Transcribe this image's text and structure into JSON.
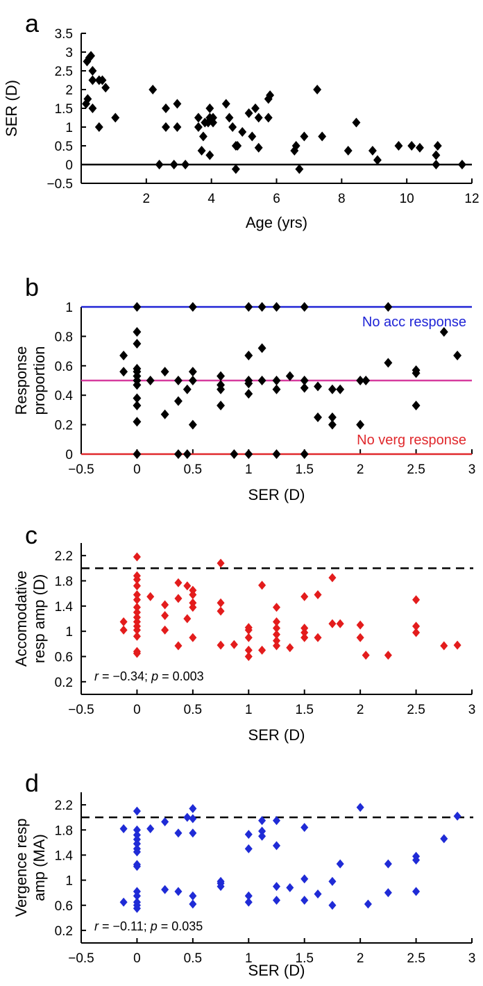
{
  "chart_data": [
    {
      "panel": "a",
      "type": "scatter",
      "xlabel": "Age (yrs)",
      "ylabel": "SER (D)",
      "xlim": [
        0,
        12
      ],
      "ylim": [
        -0.5,
        3.5
      ],
      "xticks": [
        2,
        4,
        6,
        8,
        10,
        12
      ],
      "yticks": [
        -0.5,
        0,
        0.5,
        1,
        1.5,
        2,
        2.5,
        3,
        3.5
      ],
      "ytick_labels": [
        "−0.5",
        "0",
        "0.5",
        "1",
        "1.5",
        "2",
        "2.5",
        "3",
        "3.5"
      ],
      "reference_lines": [
        {
          "y": 0,
          "color": "#000000",
          "style": "solid"
        }
      ],
      "marker_color": "#000000",
      "points": [
        [
          0.15,
          1.62
        ],
        [
          0.2,
          1.75
        ],
        [
          0.18,
          2.75
        ],
        [
          0.25,
          2.85
        ],
        [
          0.3,
          2.9
        ],
        [
          0.35,
          2.5
        ],
        [
          0.35,
          2.25
        ],
        [
          0.35,
          1.5
        ],
        [
          0.55,
          2.25
        ],
        [
          0.55,
          1.0
        ],
        [
          0.65,
          2.25
        ],
        [
          0.75,
          2.05
        ],
        [
          1.05,
          1.25
        ],
        [
          2.2,
          2.0
        ],
        [
          2.4,
          0.0
        ],
        [
          2.6,
          1.5
        ],
        [
          2.6,
          1.0
        ],
        [
          2.85,
          0.0
        ],
        [
          2.95,
          1.62
        ],
        [
          2.95,
          1.0
        ],
        [
          3.2,
          0.0
        ],
        [
          3.6,
          1.25
        ],
        [
          3.6,
          1.0
        ],
        [
          3.7,
          0.37
        ],
        [
          3.75,
          0.75
        ],
        [
          3.8,
          1.12
        ],
        [
          3.9,
          1.12
        ],
        [
          3.95,
          1.5
        ],
        [
          3.95,
          1.25
        ],
        [
          3.95,
          0.25
        ],
        [
          4.05,
          1.25
        ],
        [
          4.05,
          1.12
        ],
        [
          4.45,
          1.62
        ],
        [
          4.55,
          1.25
        ],
        [
          4.65,
          1.0
        ],
        [
          4.75,
          0.5
        ],
        [
          4.8,
          0.5
        ],
        [
          4.75,
          -0.12
        ],
        [
          4.95,
          0.87
        ],
        [
          5.15,
          1.37
        ],
        [
          5.25,
          0.75
        ],
        [
          5.35,
          1.5
        ],
        [
          5.45,
          1.25
        ],
        [
          5.45,
          0.45
        ],
        [
          5.75,
          1.75
        ],
        [
          5.75,
          1.25
        ],
        [
          5.8,
          1.85
        ],
        [
          6.55,
          0.37
        ],
        [
          6.6,
          0.5
        ],
        [
          6.7,
          -0.12
        ],
        [
          6.85,
          0.75
        ],
        [
          7.25,
          2.0
        ],
        [
          7.4,
          0.75
        ],
        [
          8.2,
          0.37
        ],
        [
          8.45,
          1.12
        ],
        [
          8.95,
          0.37
        ],
        [
          9.1,
          0.12
        ],
        [
          9.75,
          0.5
        ],
        [
          10.15,
          0.5
        ],
        [
          10.4,
          0.45
        ],
        [
          10.95,
          0.5
        ],
        [
          10.9,
          0.25
        ],
        [
          10.9,
          0.0
        ],
        [
          11.7,
          0.0
        ]
      ]
    },
    {
      "panel": "b",
      "type": "scatter",
      "xlabel": "SER (D)",
      "ylabel": [
        "Response",
        "proportion"
      ],
      "xlim": [
        -0.5,
        3
      ],
      "ylim": [
        0,
        1
      ],
      "xticks": [
        -0.5,
        0,
        0.5,
        1,
        1.5,
        2,
        2.5,
        3
      ],
      "xtick_labels": [
        "−0.5",
        "0",
        "0.5",
        "1",
        "1.5",
        "2",
        "2.5",
        "3"
      ],
      "yticks": [
        0,
        0.2,
        0.4,
        0.6,
        0.8,
        1
      ],
      "reference_lines": [
        {
          "y": 1,
          "color": "#1f24d6",
          "style": "solid",
          "label": "No acc response"
        },
        {
          "y": 0.5,
          "color": "#d63c9e",
          "style": "solid"
        },
        {
          "y": 0,
          "color": "#e0282c",
          "style": "solid",
          "label": "No verg response"
        }
      ],
      "marker_color": "#000000",
      "points": [
        [
          0,
          1
        ],
        [
          0.5,
          1
        ],
        [
          1,
          1
        ],
        [
          1.12,
          1
        ],
        [
          1.25,
          1
        ],
        [
          1.5,
          1
        ],
        [
          2.25,
          1
        ],
        [
          -0.12,
          0.67
        ],
        [
          -0.12,
          0.56
        ],
        [
          0,
          0.83
        ],
        [
          0,
          0.75
        ],
        [
          0,
          0.58
        ],
        [
          0,
          0.56
        ],
        [
          0,
          0.53
        ],
        [
          0,
          0.5
        ],
        [
          0,
          0.47
        ],
        [
          0,
          0.38
        ],
        [
          0,
          0.33
        ],
        [
          0,
          0.22
        ],
        [
          0,
          0
        ],
        [
          0.12,
          0.5
        ],
        [
          0.25,
          0.56
        ],
        [
          0.25,
          0.27
        ],
        [
          0.37,
          0.5
        ],
        [
          0.37,
          0.36
        ],
        [
          0.37,
          0
        ],
        [
          0.45,
          0.44
        ],
        [
          0.45,
          0
        ],
        [
          0.5,
          0.56
        ],
        [
          0.5,
          0.5
        ],
        [
          0.5,
          0.2
        ],
        [
          0.75,
          0.53
        ],
        [
          0.75,
          0.47
        ],
        [
          0.75,
          0.44
        ],
        [
          0.75,
          0.33
        ],
        [
          0.87,
          0
        ],
        [
          1,
          0.67
        ],
        [
          1,
          0.5
        ],
        [
          1,
          0.48
        ],
        [
          1,
          0.41
        ],
        [
          1,
          0
        ],
        [
          1.12,
          0.72
        ],
        [
          1.12,
          0.5
        ],
        [
          1.25,
          0.5
        ],
        [
          1.25,
          0.44
        ],
        [
          1.25,
          0
        ],
        [
          1.37,
          0.53
        ],
        [
          1.5,
          0.5
        ],
        [
          1.5,
          0.45
        ],
        [
          1.5,
          0
        ],
        [
          1.62,
          0.46
        ],
        [
          1.62,
          0.25
        ],
        [
          1.75,
          0.44
        ],
        [
          1.75,
          0.25
        ],
        [
          1.75,
          0.2
        ],
        [
          1.82,
          0.44
        ],
        [
          2,
          0.5
        ],
        [
          2.05,
          0.5
        ],
        [
          2,
          0.2
        ],
        [
          2.25,
          0.62
        ],
        [
          2.5,
          0.57
        ],
        [
          2.5,
          0.55
        ],
        [
          2.5,
          0.33
        ],
        [
          2.75,
          0.83
        ],
        [
          2.87,
          0.67
        ]
      ]
    },
    {
      "panel": "c",
      "type": "scatter",
      "xlabel": "SER (D)",
      "ylabel": [
        "Accomodative",
        "resp amp (D)"
      ],
      "xlim": [
        -0.5,
        3
      ],
      "ylim": [
        0,
        2.4
      ],
      "xticks": [
        -0.5,
        0,
        0.5,
        1,
        1.5,
        2,
        2.5,
        3
      ],
      "xtick_labels": [
        "−0.5",
        "0",
        "0.5",
        "1",
        "1.5",
        "2",
        "2.5",
        "3"
      ],
      "yticks": [
        0.2,
        0.6,
        1,
        1.4,
        1.8,
        2.2
      ],
      "reference_lines": [
        {
          "y": 2.0,
          "color": "#000000",
          "style": "dashed"
        }
      ],
      "marker_color": "#e31c1c",
      "stat_text": {
        "r": "−0.34",
        "p": "0.003"
      },
      "points": [
        [
          -0.12,
          1.15
        ],
        [
          -0.12,
          1.02
        ],
        [
          0,
          2.18
        ],
        [
          0,
          1.88
        ],
        [
          0,
          1.82
        ],
        [
          0,
          1.72
        ],
        [
          0,
          1.58
        ],
        [
          0,
          1.5
        ],
        [
          0,
          1.38
        ],
        [
          0,
          1.3
        ],
        [
          0,
          1.22
        ],
        [
          0,
          1.15
        ],
        [
          0,
          1.08
        ],
        [
          0,
          1.02
        ],
        [
          0,
          0.92
        ],
        [
          0,
          0.68
        ],
        [
          0,
          0.65
        ],
        [
          0.12,
          1.55
        ],
        [
          0.25,
          1.42
        ],
        [
          0.25,
          1.25
        ],
        [
          0.25,
          1.02
        ],
        [
          0.37,
          1.77
        ],
        [
          0.37,
          1.52
        ],
        [
          0.37,
          0.77
        ],
        [
          0.45,
          1.72
        ],
        [
          0.45,
          1.2
        ],
        [
          0.5,
          1.65
        ],
        [
          0.5,
          1.58
        ],
        [
          0.5,
          1.45
        ],
        [
          0.5,
          1.38
        ],
        [
          0.5,
          0.9
        ],
        [
          0.75,
          2.08
        ],
        [
          0.75,
          1.45
        ],
        [
          0.75,
          1.32
        ],
        [
          0.75,
          0.78
        ],
        [
          0.87,
          0.79
        ],
        [
          1,
          1.06
        ],
        [
          1,
          1.02
        ],
        [
          1,
          0.9
        ],
        [
          1,
          0.7
        ],
        [
          1,
          0.6
        ],
        [
          1.12,
          1.73
        ],
        [
          1.12,
          0.7
        ],
        [
          1.25,
          1.38
        ],
        [
          1.25,
          1.15
        ],
        [
          1.25,
          1.05
        ],
        [
          1.25,
          0.95
        ],
        [
          1.25,
          0.85
        ],
        [
          1.25,
          0.77
        ],
        [
          1.37,
          0.74
        ],
        [
          1.5,
          1.55
        ],
        [
          1.5,
          1.05
        ],
        [
          1.5,
          0.98
        ],
        [
          1.5,
          0.9
        ],
        [
          1.62,
          1.58
        ],
        [
          1.62,
          0.9
        ],
        [
          1.75,
          1.85
        ],
        [
          1.75,
          1.12
        ],
        [
          1.82,
          1.12
        ],
        [
          2,
          1.1
        ],
        [
          2,
          0.9
        ],
        [
          2.05,
          0.62
        ],
        [
          2.25,
          0.62
        ],
        [
          2.5,
          1.5
        ],
        [
          2.5,
          1.08
        ],
        [
          2.5,
          0.98
        ],
        [
          2.75,
          0.77
        ],
        [
          2.87,
          0.78
        ]
      ]
    },
    {
      "panel": "d",
      "type": "scatter",
      "xlabel": "SER (D)",
      "ylabel": [
        "Vergence resp",
        "amp (MA)"
      ],
      "xlim": [
        -0.5,
        3
      ],
      "ylim": [
        0,
        2.4
      ],
      "xticks": [
        -0.5,
        0,
        0.5,
        1,
        1.5,
        2,
        2.5,
        3
      ],
      "xtick_labels": [
        "−0.5",
        "0",
        "0.5",
        "1",
        "1.5",
        "2",
        "2.5",
        "3"
      ],
      "yticks": [
        0.2,
        0.6,
        1,
        1.4,
        1.8,
        2.2
      ],
      "reference_lines": [
        {
          "y": 2.0,
          "color": "#000000",
          "style": "dashed"
        }
      ],
      "marker_color": "#1f2bd6",
      "stat_text": {
        "r": "−0.11",
        "p": "0.035"
      },
      "points": [
        [
          -0.12,
          1.82
        ],
        [
          -0.12,
          0.65
        ],
        [
          0,
          2.1
        ],
        [
          0,
          1.8
        ],
        [
          0,
          1.72
        ],
        [
          0,
          1.65
        ],
        [
          0,
          1.58
        ],
        [
          0,
          1.5
        ],
        [
          0,
          1.45
        ],
        [
          0,
          1.25
        ],
        [
          0,
          1.22
        ],
        [
          0,
          0.82
        ],
        [
          0,
          0.75
        ],
        [
          0,
          0.65
        ],
        [
          0,
          0.6
        ],
        [
          0,
          0.55
        ],
        [
          0.12,
          1.82
        ],
        [
          0.25,
          1.93
        ],
        [
          0.25,
          0.85
        ],
        [
          0.37,
          1.75
        ],
        [
          0.37,
          0.82
        ],
        [
          0.45,
          2.0
        ],
        [
          0.5,
          2.14
        ],
        [
          0.5,
          1.98
        ],
        [
          0.5,
          1.75
        ],
        [
          0.5,
          0.75
        ],
        [
          0.5,
          0.62
        ],
        [
          0.75,
          0.98
        ],
        [
          0.75,
          0.95
        ],
        [
          0.75,
          0.9
        ],
        [
          1,
          1.73
        ],
        [
          1,
          1.5
        ],
        [
          1,
          0.75
        ],
        [
          1,
          0.65
        ],
        [
          1.12,
          1.95
        ],
        [
          1.12,
          1.78
        ],
        [
          1.12,
          1.7
        ],
        [
          1.25,
          1.95
        ],
        [
          1.25,
          1.55
        ],
        [
          1.25,
          0.9
        ],
        [
          1.25,
          0.68
        ],
        [
          1.37,
          0.88
        ],
        [
          1.5,
          1.84
        ],
        [
          1.5,
          1.02
        ],
        [
          1.5,
          0.68
        ],
        [
          1.62,
          0.78
        ],
        [
          1.75,
          0.98
        ],
        [
          1.75,
          0.6
        ],
        [
          1.82,
          1.26
        ],
        [
          2,
          2.16
        ],
        [
          2.07,
          0.62
        ],
        [
          2.25,
          1.26
        ],
        [
          2.25,
          0.8
        ],
        [
          2.5,
          1.38
        ],
        [
          2.5,
          1.32
        ],
        [
          2.5,
          0.82
        ],
        [
          2.75,
          1.66
        ],
        [
          2.87,
          2.02
        ]
      ]
    }
  ]
}
